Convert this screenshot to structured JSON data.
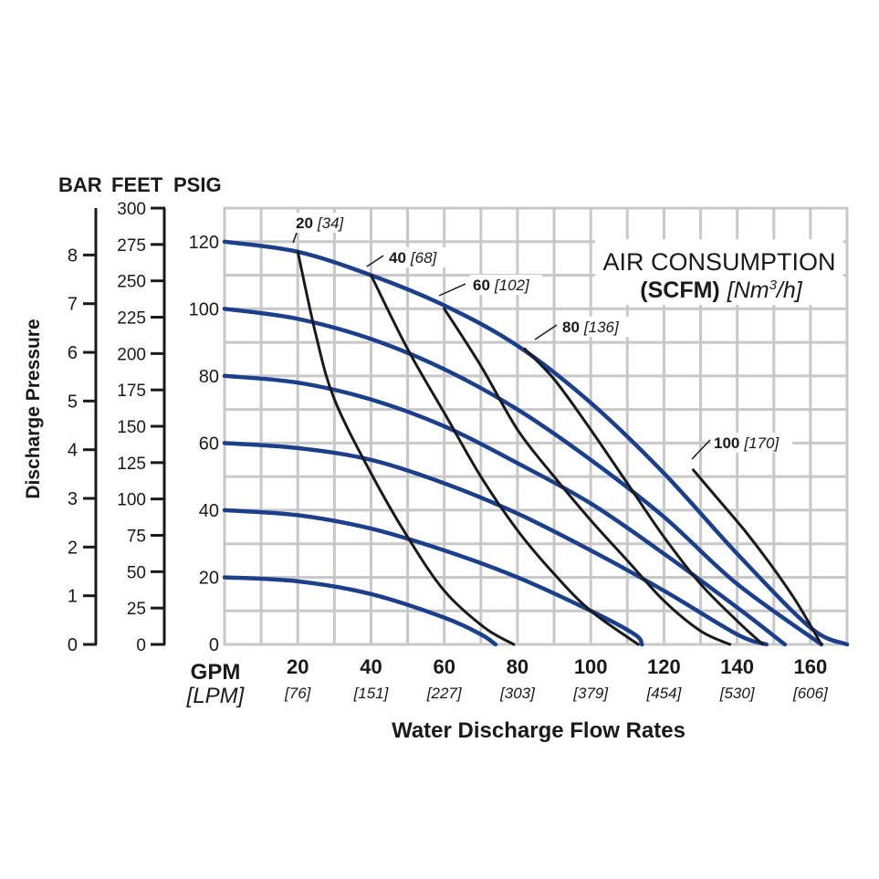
{
  "chart_data": {
    "type": "line",
    "title": "",
    "xlabel": "Water Discharge Flow Rates",
    "x_unit_primary": "GPM",
    "x_unit_secondary": "[LPM]",
    "x_ticks": [
      {
        "gpm": "20",
        "lpm": "[76]"
      },
      {
        "gpm": "40",
        "lpm": "[151]"
      },
      {
        "gpm": "60",
        "lpm": "[227]"
      },
      {
        "gpm": "80",
        "lpm": "[303]"
      },
      {
        "gpm": "100",
        "lpm": "[379]"
      },
      {
        "gpm": "120",
        "lpm": "[454]"
      },
      {
        "gpm": "140",
        "lpm": "[530]"
      },
      {
        "gpm": "160",
        "lpm": "[606]"
      }
    ],
    "xlim": [
      0,
      170
    ],
    "ylim": [
      0,
      130
    ],
    "ylabel": "Discharge Pressure",
    "y_axes": {
      "bar": {
        "header": "BAR",
        "ticks": [
          "0",
          "1",
          "2",
          "3",
          "4",
          "5",
          "6",
          "7",
          "8"
        ]
      },
      "feet": {
        "header": "FEET",
        "ticks": [
          "0",
          "25",
          "50",
          "75",
          "100",
          "125",
          "150",
          "175",
          "200",
          "225",
          "250",
          "275",
          "300"
        ]
      },
      "psig": {
        "header": "PSIG",
        "ticks": [
          "0",
          "20",
          "40",
          "60",
          "80",
          "100",
          "120"
        ]
      }
    },
    "legend_title_line1": "AIR CONSUMPTION",
    "legend_title_line2_bold": "(SCFM)",
    "legend_title_line2_italic": "[Nm",
    "legend_title_sup": "3",
    "legend_title_line2_end": "/h]",
    "pressure_curves": [
      {
        "name": "120 psig",
        "points": [
          [
            0,
            120
          ],
          [
            20,
            117
          ],
          [
            40,
            110
          ],
          [
            60,
            101
          ],
          [
            80,
            89
          ],
          [
            100,
            72
          ],
          [
            120,
            51
          ],
          [
            140,
            27
          ],
          [
            160,
            5
          ],
          [
            170,
            0
          ]
        ]
      },
      {
        "name": "100 psig",
        "points": [
          [
            0,
            100
          ],
          [
            20,
            97
          ],
          [
            40,
            91
          ],
          [
            60,
            82
          ],
          [
            80,
            70
          ],
          [
            100,
            55
          ],
          [
            120,
            38
          ],
          [
            140,
            18
          ],
          [
            163,
            0
          ]
        ]
      },
      {
        "name": "80 psig",
        "points": [
          [
            0,
            80
          ],
          [
            20,
            78
          ],
          [
            40,
            73
          ],
          [
            60,
            65
          ],
          [
            80,
            54
          ],
          [
            100,
            42
          ],
          [
            120,
            27
          ],
          [
            140,
            11
          ],
          [
            153,
            0
          ]
        ]
      },
      {
        "name": "60 psig",
        "points": [
          [
            0,
            60
          ],
          [
            20,
            58.5
          ],
          [
            40,
            55
          ],
          [
            60,
            48
          ],
          [
            80,
            39
          ],
          [
            100,
            28
          ],
          [
            120,
            16
          ],
          [
            140,
            3
          ],
          [
            148,
            0
          ]
        ]
      },
      {
        "name": "40 psig",
        "points": [
          [
            0,
            40
          ],
          [
            20,
            38.5
          ],
          [
            40,
            34.5
          ],
          [
            60,
            28
          ],
          [
            80,
            20
          ],
          [
            100,
            10
          ],
          [
            112,
            3
          ],
          [
            114,
            0
          ]
        ]
      },
      {
        "name": "20 psig",
        "points": [
          [
            0,
            20
          ],
          [
            20,
            18.8
          ],
          [
            40,
            15
          ],
          [
            60,
            8
          ],
          [
            70,
            3
          ],
          [
            74,
            0
          ]
        ]
      }
    ],
    "air_curves": [
      {
        "label": "20",
        "metric": "[34]",
        "points": [
          [
            20,
            117
          ],
          [
            25,
            92
          ],
          [
            30,
            73
          ],
          [
            40,
            51
          ],
          [
            50,
            32
          ],
          [
            60,
            16
          ],
          [
            71,
            5
          ],
          [
            79,
            0
          ]
        ]
      },
      {
        "label": "40",
        "metric": "[68]",
        "points": [
          [
            40,
            110
          ],
          [
            50,
            88
          ],
          [
            60,
            69
          ],
          [
            70,
            50
          ],
          [
            80,
            34
          ],
          [
            90,
            21
          ],
          [
            100,
            10
          ],
          [
            113,
            0
          ]
        ]
      },
      {
        "label": "60",
        "metric": "[102]",
        "points": [
          [
            60,
            100
          ],
          [
            70,
            83
          ],
          [
            80,
            64
          ],
          [
            90,
            50
          ],
          [
            100,
            37
          ],
          [
            110,
            25
          ],
          [
            120,
            13
          ],
          [
            130,
            4
          ],
          [
            138,
            0
          ]
        ]
      },
      {
        "label": "80",
        "metric": "[136]",
        "points": [
          [
            82,
            88
          ],
          [
            90,
            79
          ],
          [
            100,
            64
          ],
          [
            110,
            48
          ],
          [
            120,
            32
          ],
          [
            130,
            18
          ],
          [
            140,
            7
          ],
          [
            147,
            0
          ]
        ]
      },
      {
        "label": "100",
        "metric": "[170]",
        "points": [
          [
            128,
            52
          ],
          [
            135,
            43
          ],
          [
            142,
            34
          ],
          [
            149,
            24
          ],
          [
            156,
            13
          ],
          [
            163,
            0
          ]
        ]
      }
    ]
  },
  "colors": {
    "pressure_curve": "#1c3f8c",
    "air_curve": "#1a1a1a",
    "grid": "#c8c8c8",
    "text": "#1a1a1a"
  }
}
